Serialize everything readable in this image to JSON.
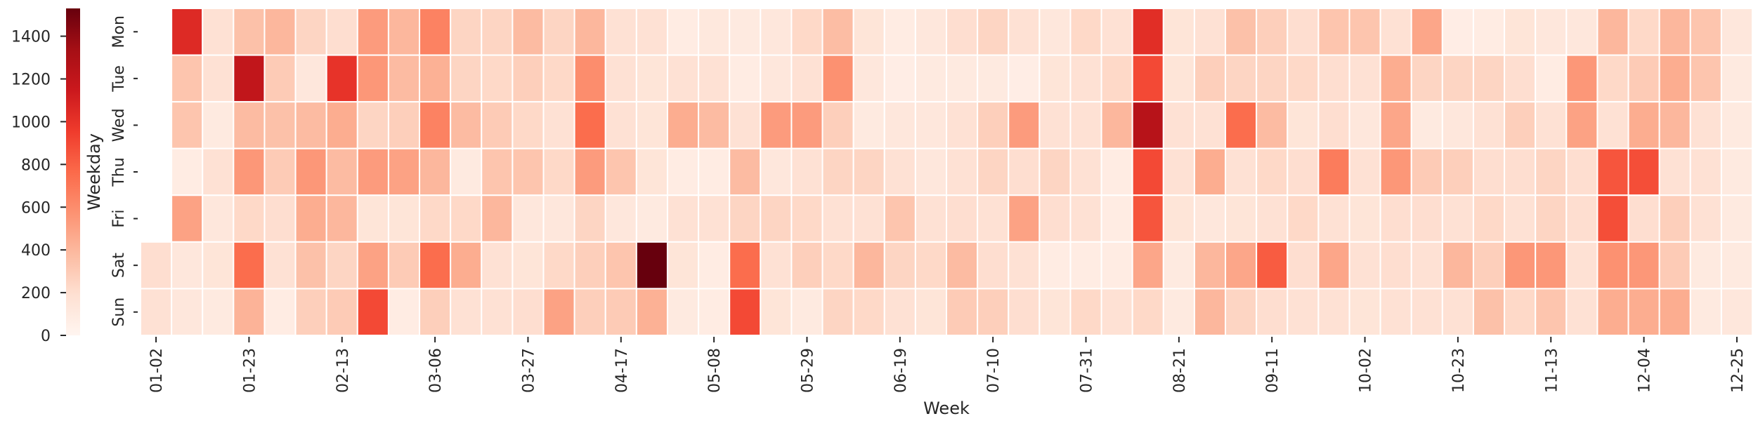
{
  "chart_data": {
    "type": "heatmap",
    "xlabel": "Week",
    "ylabel": "Weekday",
    "colormap": "Reds",
    "colorbar": {
      "range": [
        0,
        1530
      ],
      "ticks": [
        0,
        200,
        400,
        600,
        800,
        1000,
        1200,
        1400
      ]
    },
    "rows": [
      "Mon",
      "Tue",
      "Wed",
      "Thu",
      "Fri",
      "Sat",
      "Sun"
    ],
    "x_tick_labels": [
      "01-02",
      "01-23",
      "02-13",
      "03-06",
      "03-27",
      "04-17",
      "05-08",
      "05-29",
      "06-19",
      "07-10",
      "07-31",
      "08-21",
      "09-11",
      "10-02",
      "10-23",
      "11-13",
      "12-04",
      "12-25"
    ],
    "x_tick_weeks": [
      0,
      3,
      6,
      9,
      12,
      15,
      18,
      21,
      24,
      27,
      30,
      33,
      36,
      39,
      42,
      45,
      48,
      51
    ],
    "weeks": 52,
    "values": [
      [
        null,
        1050,
        180,
        350,
        400,
        250,
        200,
        530,
        400,
        650,
        250,
        250,
        380,
        250,
        400,
        180,
        180,
        80,
        120,
        100,
        130,
        230,
        370,
        150,
        80,
        130,
        200,
        250,
        180,
        130,
        230,
        180,
        1030,
        150,
        180,
        350,
        280,
        200,
        330,
        330,
        180,
        480,
        70,
        80,
        150,
        130,
        130,
        400,
        230,
        400,
        330,
        130
      ],
      [
        null,
        330,
        180,
        1200,
        300,
        130,
        1000,
        550,
        380,
        430,
        250,
        230,
        280,
        230,
        600,
        180,
        150,
        180,
        180,
        80,
        130,
        180,
        580,
        130,
        70,
        100,
        100,
        100,
        70,
        150,
        180,
        230,
        900,
        150,
        280,
        250,
        250,
        230,
        200,
        180,
        450,
        250,
        250,
        250,
        200,
        80,
        550,
        230,
        300,
        450,
        330,
        100
      ],
      [
        null,
        330,
        100,
        380,
        350,
        380,
        450,
        250,
        280,
        650,
        380,
        300,
        230,
        180,
        750,
        180,
        150,
        450,
        380,
        180,
        530,
        530,
        280,
        100,
        130,
        130,
        180,
        280,
        530,
        180,
        180,
        400,
        1250,
        180,
        180,
        750,
        380,
        150,
        200,
        130,
        480,
        100,
        130,
        180,
        280,
        180,
        500,
        180,
        450,
        400,
        180,
        100
      ],
      [
        null,
        80,
        180,
        550,
        300,
        550,
        380,
        530,
        500,
        400,
        100,
        330,
        330,
        230,
        530,
        330,
        150,
        80,
        80,
        380,
        130,
        180,
        250,
        250,
        180,
        130,
        180,
        250,
        200,
        250,
        180,
        80,
        900,
        180,
        450,
        180,
        230,
        200,
        680,
        180,
        550,
        300,
        280,
        200,
        200,
        250,
        200,
        850,
        880,
        180,
        180,
        100
      ],
      [
        null,
        500,
        130,
        230,
        200,
        450,
        400,
        150,
        150,
        230,
        230,
        400,
        130,
        130,
        250,
        130,
        100,
        180,
        180,
        250,
        250,
        230,
        180,
        180,
        330,
        180,
        200,
        180,
        500,
        200,
        180,
        80,
        850,
        150,
        130,
        150,
        180,
        230,
        180,
        150,
        200,
        200,
        180,
        230,
        180,
        250,
        200,
        880,
        200,
        280,
        180,
        100
      ],
      [
        200,
        130,
        150,
        750,
        180,
        350,
        250,
        500,
        300,
        750,
        450,
        180,
        150,
        230,
        280,
        330,
        1530,
        150,
        80,
        750,
        180,
        280,
        230,
        400,
        250,
        230,
        380,
        200,
        180,
        80,
        80,
        80,
        480,
        100,
        400,
        480,
        820,
        200,
        480,
        180,
        200,
        180,
        400,
        280,
        550,
        550,
        180,
        580,
        550,
        300,
        100,
        100
      ],
      [
        180,
        130,
        100,
        420,
        80,
        280,
        300,
        900,
        80,
        280,
        180,
        180,
        200,
        500,
        280,
        300,
        430,
        100,
        80,
        900,
        150,
        100,
        250,
        230,
        180,
        150,
        300,
        280,
        200,
        150,
        230,
        180,
        230,
        100,
        400,
        250,
        200,
        180,
        180,
        150,
        180,
        180,
        180,
        350,
        230,
        330,
        180,
        450,
        450,
        450,
        100,
        130
      ]
    ]
  }
}
